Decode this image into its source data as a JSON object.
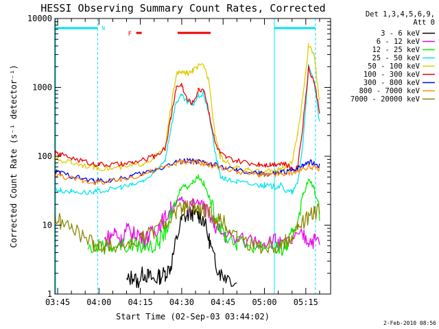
{
  "chart_data": {
    "type": "line",
    "title": "HESSI Observing Summary Count Rates, Corrected",
    "xlabel": "Start Time (02-Sep-03 03:44:02)",
    "ylabel": "Corrected Count Rate (s⁻¹ detector⁻¹)",
    "y_scale": "log",
    "ylim": [
      1,
      10000
    ],
    "xlim_minutes": [
      224,
      324
    ],
    "y_tick_labels": [
      "1",
      "10",
      "100",
      "1000",
      "10000"
    ],
    "y_tick_values": [
      1,
      10,
      100,
      1000,
      10000
    ],
    "x_tick_labels": [
      "03:45",
      "04:00",
      "04:15",
      "04:30",
      "04:45",
      "05:00",
      "05:15"
    ],
    "x_tick_values": [
      225,
      240,
      255,
      270,
      285,
      300,
      315
    ],
    "legend_header": [
      "Det 1,3,4,5,6,9,",
      "Att 0"
    ],
    "footer_date": "2-Feb-2010 08:56",
    "grid": false,
    "legend_position": "right-top",
    "annotations": {
      "N_label": "N",
      "F_label": "F",
      "night_color": "#00e5ee",
      "flare_color": "#ee0000",
      "night_intervals": [
        [
          224,
          239.5
        ],
        [
          303.6,
          318.5
        ]
      ],
      "flare_intervals": [
        [
          253.5,
          255.5
        ],
        [
          268.5,
          280.5
        ]
      ],
      "saa_dashed": [
        239.5,
        318.5
      ],
      "saa_solid": [
        303.6
      ]
    },
    "series": [
      {
        "name": "3 - 6 keV",
        "color": "#000000",
        "x": [
          224,
          230,
          236,
          240,
          244,
          248,
          250,
          252,
          254,
          256,
          258,
          260,
          262,
          264,
          266,
          268,
          270,
          272,
          274,
          276,
          278,
          280,
          282,
          284,
          286,
          290,
          296,
          300,
          304,
          306,
          308,
          310,
          312,
          314,
          316,
          318,
          320
        ],
        "y": [
          null,
          null,
          null,
          null,
          null,
          null,
          1.5,
          1.8,
          1.5,
          2,
          1.8,
          1.6,
          1.8,
          2,
          2.5,
          6,
          12,
          14,
          15,
          14,
          12,
          6,
          3,
          2,
          1.8,
          1.5,
          null,
          null,
          null,
          null,
          null,
          null,
          null,
          null,
          null,
          null,
          null
        ]
      },
      {
        "name": "6 - 12 keV",
        "color": "#ee00ee",
        "x": [
          224,
          226,
          230,
          234,
          238,
          242,
          244,
          246,
          248,
          250,
          252,
          254,
          256,
          258,
          260,
          262,
          264,
          266,
          268,
          270,
          272,
          274,
          276,
          278,
          280,
          282,
          284,
          286,
          290,
          296,
          300,
          304,
          306,
          310,
          314,
          316,
          318,
          320
        ],
        "y": [
          null,
          null,
          null,
          null,
          null,
          6,
          7,
          8,
          6,
          9,
          7,
          8,
          6,
          7,
          8,
          10,
          13,
          17,
          21,
          24,
          20,
          19,
          22,
          18,
          14,
          10,
          8,
          7,
          6,
          6,
          6,
          6,
          5,
          6,
          7,
          6,
          6,
          6
        ]
      },
      {
        "name": "12 - 25 keV",
        "color": "#00ee00",
        "x": [
          224,
          230,
          236,
          240,
          244,
          248,
          252,
          256,
          260,
          262,
          264,
          266,
          268,
          270,
          272,
          274,
          276,
          278,
          280,
          282,
          284,
          286,
          290,
          296,
          300,
          304,
          306,
          308,
          310,
          312,
          314,
          316,
          318,
          320
        ],
        "y": [
          null,
          null,
          4.5,
          5,
          5,
          5,
          5,
          5,
          5,
          6,
          8,
          13,
          22,
          38,
          36,
          42,
          52,
          40,
          25,
          14,
          9,
          7,
          5.5,
          5,
          5,
          5,
          4.5,
          5,
          7,
          12,
          28,
          45,
          35,
          15
        ]
      },
      {
        "name": "25 - 50 keV",
        "color": "#00e5ee",
        "x": [
          224,
          226,
          230,
          234,
          238,
          240,
          244,
          248,
          252,
          256,
          260,
          264,
          266,
          268,
          270,
          272,
          274,
          276,
          278,
          280,
          282,
          284,
          286,
          290,
          294,
          298,
          300,
          302,
          304,
          306,
          308,
          310,
          312,
          314,
          316,
          318,
          320
        ],
        "y": [
          33,
          32,
          31,
          30,
          30,
          31,
          33,
          36,
          38,
          44,
          55,
          90,
          250,
          620,
          750,
          600,
          560,
          750,
          800,
          400,
          120,
          52,
          46,
          43,
          40,
          38,
          38,
          37,
          36,
          38,
          31,
          30,
          40,
          160,
          2000,
          1200,
          300
        ]
      },
      {
        "name": "50 - 100 keV",
        "color": "#ddcc00",
        "x": [
          224,
          226,
          230,
          234,
          238,
          240,
          244,
          248,
          252,
          256,
          260,
          264,
          266,
          268,
          270,
          272,
          274,
          276,
          278,
          280,
          282,
          284,
          286,
          290,
          294,
          298,
          300,
          302,
          304,
          306,
          308,
          310,
          312,
          314,
          316,
          318,
          320
        ],
        "y": [
          90,
          88,
          82,
          75,
          70,
          68,
          66,
          68,
          72,
          80,
          95,
          130,
          480,
          1550,
          1650,
          1600,
          1750,
          2000,
          2100,
          1200,
          220,
          100,
          82,
          68,
          62,
          60,
          60,
          61,
          62,
          65,
          70,
          80,
          200,
          800,
          4000,
          3000,
          600
        ]
      },
      {
        "name": "100 - 300 keV",
        "color": "#ee0000",
        "x": [
          224,
          226,
          230,
          234,
          238,
          240,
          244,
          248,
          252,
          256,
          260,
          264,
          266,
          268,
          270,
          272,
          274,
          276,
          278,
          280,
          282,
          284,
          286,
          290,
          294,
          298,
          300,
          302,
          304,
          306,
          308,
          310,
          312,
          314,
          316,
          318,
          320
        ],
        "y": [
          110,
          105,
          95,
          85,
          78,
          76,
          75,
          76,
          80,
          88,
          100,
          130,
          350,
          1000,
          1100,
          650,
          600,
          900,
          950,
          420,
          160,
          110,
          95,
          85,
          80,
          77,
          76,
          76,
          78,
          80,
          75,
          65,
          68,
          300,
          1900,
          1200,
          450
        ]
      },
      {
        "name": "300 - 800 keV",
        "color": "#0000ee",
        "x": [
          224,
          226,
          230,
          234,
          238,
          240,
          244,
          248,
          252,
          256,
          260,
          264,
          268,
          270,
          272,
          274,
          276,
          278,
          280,
          282,
          286,
          290,
          294,
          298,
          300,
          302,
          304,
          306,
          308,
          310,
          312,
          314,
          316,
          318,
          320
        ],
        "y": [
          60,
          57,
          52,
          47,
          44,
          44,
          45,
          47,
          52,
          57,
          63,
          72,
          82,
          85,
          86,
          85,
          83,
          80,
          77,
          74,
          68,
          62,
          58,
          56,
          55,
          55,
          56,
          58,
          60,
          63,
          68,
          75,
          85,
          78,
          72
        ]
      },
      {
        "name": "800 - 7000 keV",
        "color": "#ff8800",
        "x": [
          224,
          226,
          230,
          234,
          238,
          240,
          244,
          248,
          252,
          256,
          260,
          264,
          268,
          270,
          272,
          274,
          276,
          278,
          280,
          282,
          286,
          290,
          294,
          298,
          300,
          302,
          304,
          306,
          308,
          310,
          312,
          314,
          316,
          318,
          320
        ],
        "y": [
          55,
          52,
          48,
          44,
          42,
          42,
          43,
          45,
          50,
          55,
          62,
          70,
          80,
          83,
          84,
          83,
          81,
          78,
          75,
          72,
          66,
          60,
          56,
          54,
          53,
          53,
          54,
          55,
          56,
          58,
          60,
          65,
          72,
          68,
          65
        ]
      },
      {
        "name": "7000 - 20000 keV",
        "color": "#888800",
        "x": [
          224,
          226,
          230,
          234,
          238,
          240,
          242,
          244,
          248,
          252,
          256,
          260,
          264,
          268,
          270,
          272,
          274,
          276,
          278,
          280,
          282,
          284,
          286,
          290,
          294,
          298,
          300,
          304,
          306,
          308,
          310,
          312,
          314,
          316,
          318,
          320
        ],
        "y": [
          13,
          11,
          9,
          7,
          5.5,
          5,
          5,
          5,
          5,
          5.5,
          6.5,
          8,
          11,
          15,
          17,
          18,
          18,
          17,
          16,
          15,
          13,
          12,
          10,
          7,
          5.5,
          5,
          5,
          5,
          5,
          6,
          7,
          9,
          11,
          13,
          15,
          16
        ]
      }
    ]
  }
}
